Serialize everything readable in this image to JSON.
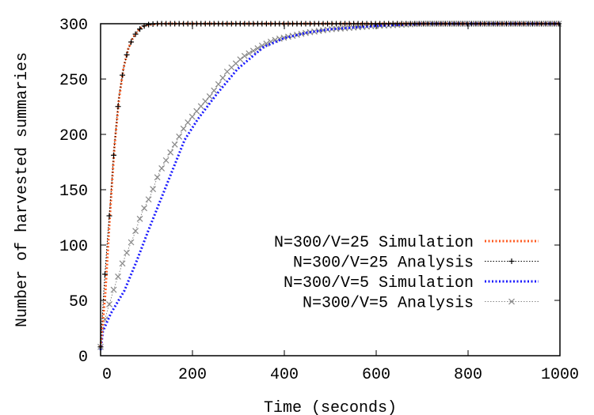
{
  "chart_data": {
    "type": "line",
    "title": "",
    "xlabel": "Time (seconds)",
    "ylabel": "Number of harvested summaries",
    "xlim": [
      0,
      1000
    ],
    "ylim": [
      0,
      300
    ],
    "xticks": [
      0,
      200,
      400,
      600,
      800,
      1000
    ],
    "yticks": [
      0,
      50,
      100,
      150,
      200,
      250,
      300
    ],
    "xtick_labels": [
      "0",
      "200",
      "400",
      "600",
      "800",
      "1000"
    ],
    "ytick_labels": [
      "0",
      "50",
      "100",
      "150",
      "200",
      "250",
      "300"
    ],
    "grid": false,
    "legend_position": "right-middle",
    "series": [
      {
        "name": "N=300/V=25 Simulation",
        "color": "#ff5a1f",
        "style": "dotted-thick",
        "marker": "none",
        "x": [
          0,
          10,
          20,
          30,
          40,
          50,
          60,
          70,
          80,
          90,
          100,
          130,
          1000
        ],
        "y": [
          8,
          55,
          125,
          188,
          232,
          260,
          277,
          287,
          293,
          297,
          299,
          300,
          300
        ]
      },
      {
        "name": "N=300/V=25 Analysis",
        "color": "#000000",
        "style": "dotted-thin",
        "marker": "plus",
        "x": [
          0,
          7,
          14,
          21,
          30,
          40,
          50,
          60,
          70,
          80,
          90,
          100,
          120,
          1000
        ],
        "y": [
          8,
          59,
          100,
          137,
          190,
          234,
          260,
          277,
          287,
          293,
          297,
          299,
          300,
          300
        ]
      },
      {
        "name": "N=300/V=5 Simulation",
        "color": "#1a1aff",
        "style": "dotted-thick",
        "marker": "none",
        "x": [
          0,
          5,
          22,
          52,
          79,
          103,
          126,
          155,
          183,
          212,
          252,
          298,
          355,
          400,
          450,
          500,
          600,
          700,
          1000
        ],
        "y": [
          5,
          22,
          38,
          59,
          86,
          112,
          136,
          166,
          195,
          214,
          236,
          259,
          279,
          287,
          292,
          295,
          298,
          300,
          300
        ]
      },
      {
        "name": "N=300/V=5 Analysis",
        "color": "#888888",
        "style": "dotted-thin",
        "marker": "cross",
        "x": [
          0,
          10,
          28,
          48,
          71,
          91,
          109,
          126,
          155,
          183,
          207,
          241,
          276,
          310,
          355,
          384,
          450,
          500,
          600,
          700,
          1000
        ],
        "y": [
          8,
          34,
          59,
          84,
          107,
          130,
          145,
          164,
          186,
          207,
          220,
          236,
          257,
          270,
          281,
          286,
          292,
          295,
          298,
          300,
          300
        ]
      }
    ]
  }
}
